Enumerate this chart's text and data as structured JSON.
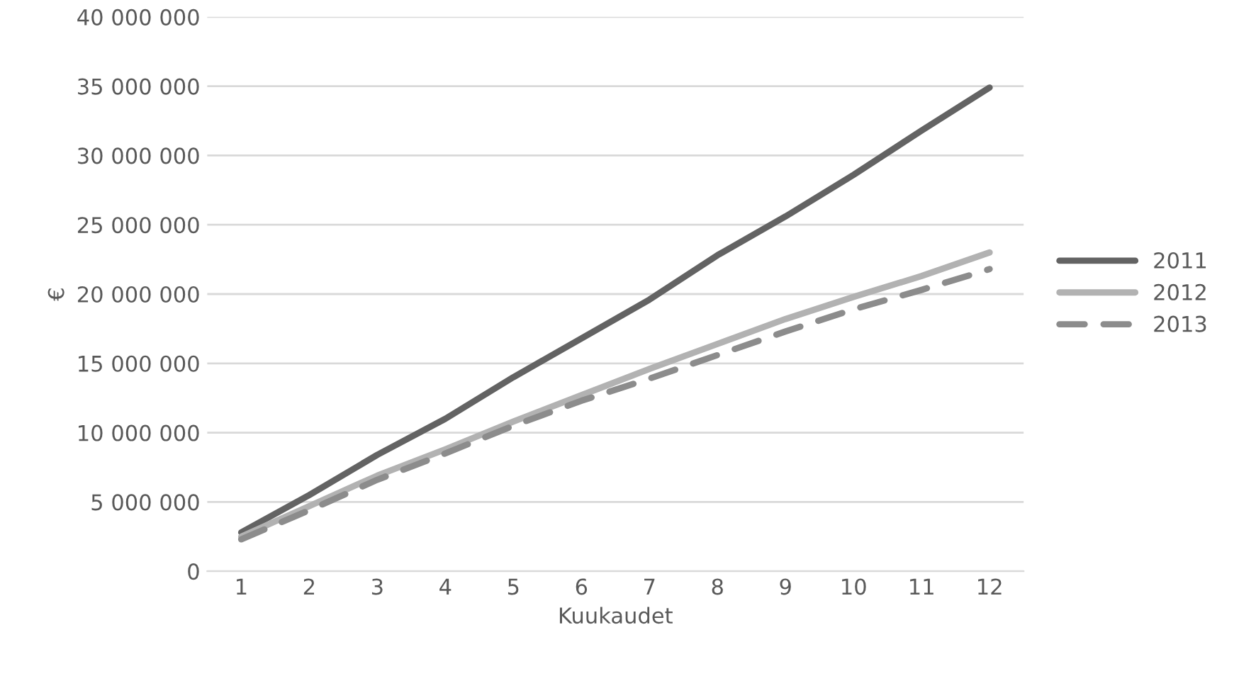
{
  "chart_data": {
    "type": "line",
    "xlabel": "Kuukaudet",
    "ylabel": "€",
    "categories": [
      "1",
      "2",
      "3",
      "4",
      "5",
      "6",
      "7",
      "8",
      "9",
      "10",
      "11",
      "12"
    ],
    "series": [
      {
        "name": "2011",
        "color": "#636363",
        "line_style": "solid",
        "values": [
          2800000,
          5500000,
          8400000,
          11000000,
          14000000,
          16800000,
          19600000,
          22800000,
          25600000,
          28600000,
          31800000,
          34900000
        ]
      },
      {
        "name": "2012",
        "color": "#b2b2b2",
        "line_style": "solid",
        "values": [
          2500000,
          4700000,
          6900000,
          8800000,
          10800000,
          12700000,
          14600000,
          16400000,
          18200000,
          19800000,
          21300000,
          23000000
        ]
      },
      {
        "name": "2013",
        "color": "#8c8c8c",
        "line_style": "dashed",
        "values": [
          2300000,
          4400000,
          6600000,
          8500000,
          10500000,
          12300000,
          13900000,
          15600000,
          17300000,
          18900000,
          20300000,
          21800000
        ]
      }
    ],
    "ylim": [
      0,
      40000000
    ],
    "yticks": [
      {
        "value": 0,
        "label": "0"
      },
      {
        "value": 5000000,
        "label": "5 000 000"
      },
      {
        "value": 10000000,
        "label": "10 000 000"
      },
      {
        "value": 15000000,
        "label": "15 000 000"
      },
      {
        "value": 20000000,
        "label": "20 000 000"
      },
      {
        "value": 25000000,
        "label": "25 000 000"
      },
      {
        "value": 30000000,
        "label": "30 000 000"
      },
      {
        "value": 35000000,
        "label": "35 000 000"
      },
      {
        "value": 40000000,
        "label": "40 000 000"
      }
    ],
    "grid": "y",
    "legend": "right",
    "marker": "none"
  }
}
